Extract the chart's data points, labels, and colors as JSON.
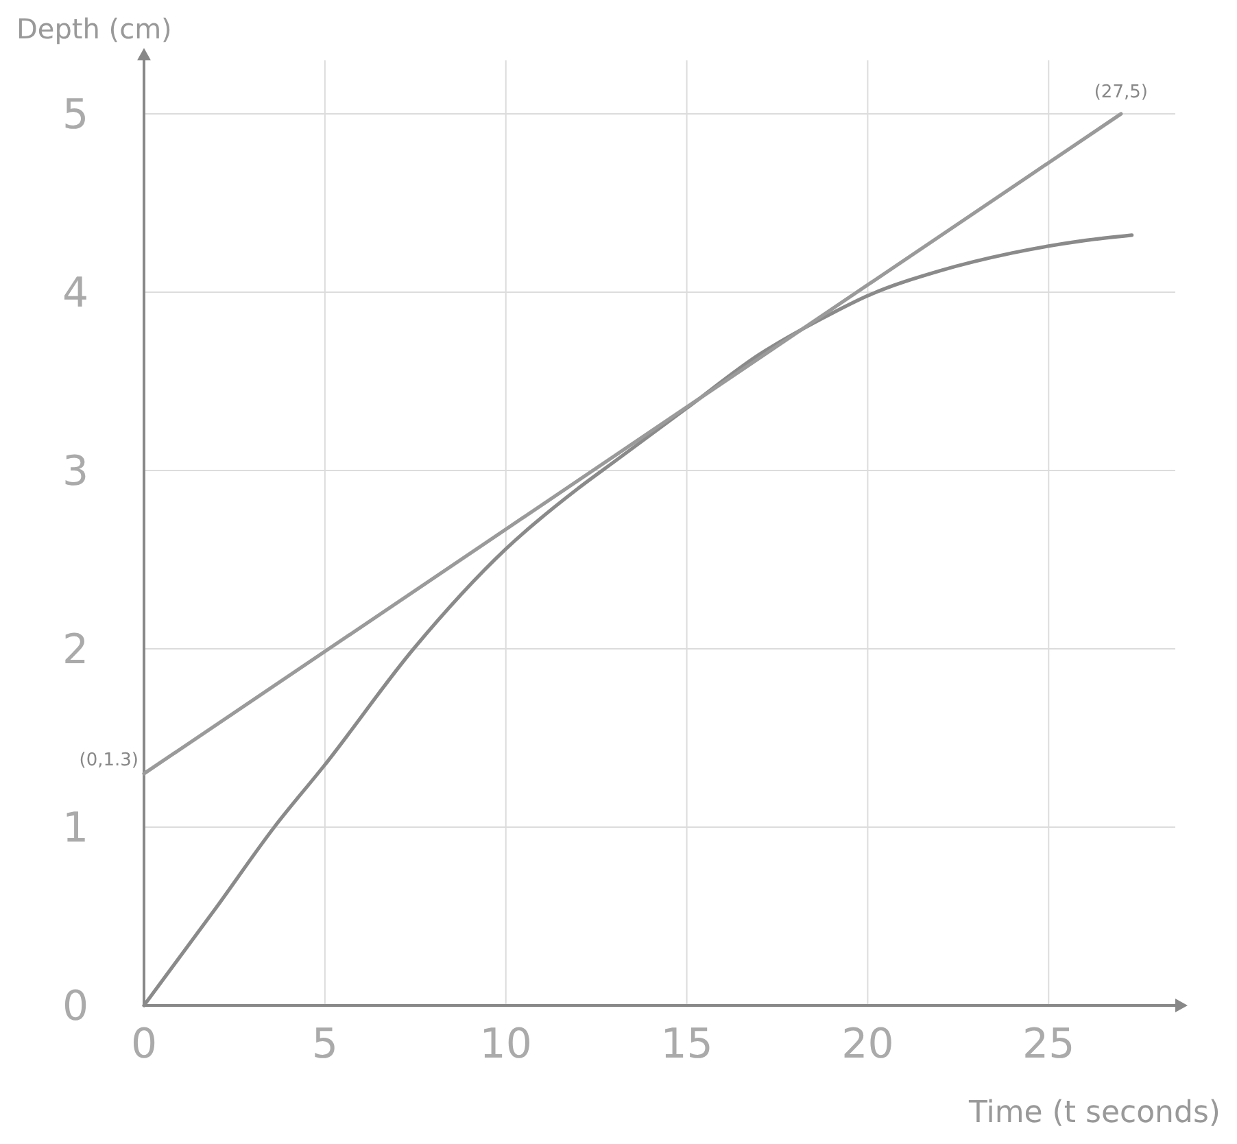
{
  "chart_data": {
    "type": "line",
    "xlabel": "Time (t seconds)",
    "ylabel": "Depth (cm)",
    "xlim": [
      0,
      28.5
    ],
    "ylim": [
      0,
      5.3
    ],
    "xticks": [
      0,
      5,
      10,
      15,
      20,
      25
    ],
    "yticks": [
      0,
      1,
      2,
      3,
      4,
      5
    ],
    "grid": true,
    "marker": "none",
    "line_style": "solid",
    "series": [
      {
        "color": "#8a8a8a",
        "x": [
          0,
          2,
          3.6,
          5,
          7.45,
          10,
          12,
          13,
          15,
          17,
          19,
          20,
          22,
          24,
          26,
          27.3
        ],
        "values": [
          0,
          0.55,
          1,
          1.35,
          2,
          2.56,
          2.9,
          3.05,
          3.35,
          3.65,
          3.88,
          3.98,
          4.12,
          4.22,
          4.29,
          4.32
        ]
      },
      {
        "color": "#9a9a9a",
        "x": [
          0,
          27
        ],
        "values": [
          1.3,
          5
        ]
      }
    ],
    "annotations": [
      {
        "text": "(27,5)",
        "x": 27,
        "y": 5
      },
      {
        "text": "(0,1.3)",
        "x": 0,
        "y": 1.3
      }
    ]
  }
}
